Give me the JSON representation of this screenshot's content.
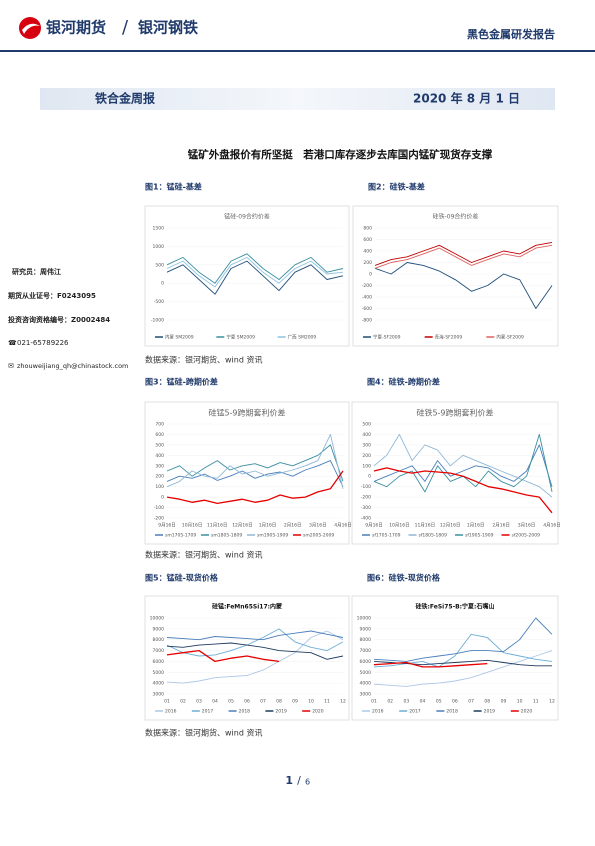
{
  "header": {
    "logo1": "银河期货",
    "logo2": "银河钢铁",
    "report": "黑色金属研发报告"
  },
  "band": {
    "name": "铁合金周报",
    "date": "2020 年 8 月 1 日"
  },
  "author": {
    "researcher": "研究员：周伟江",
    "license": "期货从业证号：F0243095",
    "qualification": "投资咨询资格编号：Z0002484",
    "phone": "021-65789226",
    "email": "zhouweijiang_qh@chinastock.com"
  },
  "title": "锰矿外盘报价有所坚挺　若港口库存逐步去库国内锰矿现货存支撑",
  "sources": [
    "数据来源：银河期货、wind 资讯",
    "数据来源：银河期货、wind 资讯",
    "数据来源：银河期货、wind 资讯"
  ],
  "page": {
    "current": "1",
    "total": "6"
  },
  "chart_data": [
    {
      "type": "line",
      "caption": "图1：锰硅-基差",
      "title": "锰硅-09合约价差",
      "categories": [
        null,
        null,
        null,
        null,
        null,
        null,
        null,
        null,
        null,
        null,
        null,
        null
      ],
      "ylim": [
        -1000,
        1500
      ],
      "yticks": [
        -1000,
        -500,
        0,
        500,
        1000,
        1500
      ],
      "series": [
        {
          "name": "内蒙 SM2009",
          "color": "#1f4e79",
          "values": [
            300,
            500,
            100,
            -300,
            400,
            600,
            200,
            -200,
            300,
            500,
            100,
            200
          ]
        },
        {
          "name": "宁夏 SM2009",
          "color": "#3a8fa0",
          "values": [
            500,
            700,
            300,
            0,
            600,
            800,
            400,
            100,
            500,
            700,
            300,
            400
          ]
        },
        {
          "name": "广西 SM2009",
          "color": "#8fc3e0",
          "values": [
            400,
            600,
            200,
            -100,
            500,
            700,
            300,
            0,
            400,
            600,
            250,
            300
          ]
        }
      ]
    },
    {
      "type": "line",
      "caption": "图2：硅铁-基差",
      "title": "硅铁-09合约价差",
      "categories": [
        null,
        null,
        null,
        null,
        null,
        null,
        null,
        null,
        null,
        null,
        null,
        null
      ],
      "ylim": [
        -800,
        800
      ],
      "yticks": [
        -800,
        -600,
        -400,
        -200,
        0,
        200,
        400,
        600,
        800
      ],
      "series": [
        {
          "name": "宁夏-SF2009",
          "color": "#1f4e79",
          "values": [
            100,
            0,
            200,
            150,
            50,
            -100,
            -300,
            -200,
            0,
            -100,
            -600,
            -200
          ]
        },
        {
          "name": "青海-SF2009",
          "color": "#c00000",
          "values": [
            150,
            250,
            300,
            400,
            500,
            350,
            200,
            300,
            400,
            350,
            500,
            550
          ]
        },
        {
          "name": "内蒙-SF2009",
          "color": "#e06060",
          "values": [
            100,
            200,
            250,
            350,
            450,
            300,
            150,
            250,
            350,
            300,
            450,
            500
          ]
        }
      ]
    },
    {
      "type": "line",
      "caption": "图3：锰硅-跨期价差",
      "title": "硅锰5-9跨期套利价差",
      "categories": [
        "9月16日",
        null,
        "10月16日",
        null,
        "11月16日",
        null,
        "12月16日",
        null,
        "1月16日",
        null,
        "2月16日",
        null,
        "3月16日",
        null,
        "4月16日"
      ],
      "ylim": [
        -200,
        700
      ],
      "yticks": [
        -200,
        -100,
        0,
        100,
        200,
        300,
        400,
        500,
        600,
        700
      ],
      "series": [
        {
          "name": "sm1705-1709",
          "color": "#4a7ebb",
          "values": [
            150,
            200,
            180,
            220,
            160,
            200,
            250,
            180,
            220,
            240,
            200,
            260,
            300,
            350,
            100
          ]
        },
        {
          "name": "sm1805-1809",
          "color": "#3a8fa0",
          "values": [
            250,
            300,
            200,
            280,
            350,
            260,
            300,
            320,
            280,
            330,
            300,
            350,
            400,
            500,
            150
          ]
        },
        {
          "name": "sm1905-1909",
          "color": "#8fb8d8",
          "values": [
            100,
            150,
            250,
            200,
            180,
            300,
            220,
            250,
            200,
            230,
            260,
            300,
            350,
            600,
            80
          ]
        },
        {
          "name": "sm2005-2009",
          "color": "#e60000",
          "values": [
            0,
            -20,
            -50,
            -30,
            -60,
            -40,
            -20,
            -50,
            -30,
            20,
            -10,
            0,
            50,
            80,
            250
          ]
        }
      ]
    },
    {
      "type": "line",
      "caption": "图4：硅铁-跨期价差",
      "title": "硅铁5-9跨期套利价差",
      "categories": [
        "9月16日",
        null,
        "10月16日",
        null,
        "11月16日",
        null,
        "12月16日",
        null,
        "1月16日",
        null,
        "2月16日",
        null,
        "3月16日",
        null,
        "4月16日"
      ],
      "ylim": [
        -400,
        500
      ],
      "yticks": [
        -400,
        -300,
        -200,
        -100,
        0,
        100,
        200,
        300,
        400,
        500
      ],
      "series": [
        {
          "name": "sf1705-1709",
          "color": "#4a7ebb",
          "values": [
            -50,
            0,
            50,
            100,
            -50,
            150,
            0,
            50,
            100,
            80,
            0,
            -50,
            50,
            300,
            -100
          ]
        },
        {
          "name": "sf1805-1809",
          "color": "#8fb8d8",
          "values": [
            100,
            200,
            400,
            150,
            300,
            250,
            100,
            200,
            150,
            100,
            50,
            0,
            -50,
            -100,
            -200
          ]
        },
        {
          "name": "sf1905-1909",
          "color": "#3a8fa0",
          "values": [
            -50,
            -100,
            0,
            50,
            -150,
            100,
            -50,
            0,
            -100,
            50,
            -50,
            -100,
            0,
            400,
            -150
          ]
        },
        {
          "name": "sf2005-2009",
          "color": "#e60000",
          "values": [
            50,
            80,
            50,
            30,
            50,
            40,
            30,
            0,
            -50,
            -100,
            -120,
            -150,
            -180,
            -200,
            -350
          ]
        }
      ]
    },
    {
      "type": "line",
      "caption": "图5：锰硅-现货价格",
      "title": "硅锰:FeMn65Si17:内蒙",
      "categories": [
        "01",
        "02",
        "03",
        "04",
        "05",
        "06",
        "07",
        "08",
        "09",
        "10",
        "11",
        "12"
      ],
      "ylim": [
        3000,
        10000
      ],
      "yticks": [
        3000,
        4000,
        5000,
        6000,
        7000,
        8000,
        9000,
        10000
      ],
      "series": [
        {
          "name": "2016",
          "color": "#aec7e8",
          "values": [
            4100,
            4000,
            4200,
            4500,
            4600,
            4700,
            5200,
            6000,
            6800,
            8200,
            8800,
            8000
          ]
        },
        {
          "name": "2017",
          "color": "#6baed6",
          "values": [
            7500,
            6800,
            6500,
            6600,
            7000,
            7500,
            8200,
            9000,
            7800,
            7300,
            7000,
            7800
          ]
        },
        {
          "name": "2018",
          "color": "#4a7ebb",
          "values": [
            8200,
            8100,
            8000,
            8300,
            8200,
            8100,
            8000,
            8400,
            8600,
            8800,
            8500,
            8200
          ]
        },
        {
          "name": "2019",
          "color": "#1f3a5f",
          "values": [
            7400,
            7300,
            7500,
            7600,
            7700,
            7500,
            7300,
            7000,
            6900,
            6800,
            6200,
            6500
          ]
        },
        {
          "name": "2020",
          "color": "#e60000",
          "values": [
            6600,
            6800,
            7000,
            6000,
            6300,
            6500,
            6200,
            6000,
            null,
            null,
            null,
            null
          ]
        }
      ]
    },
    {
      "type": "line",
      "caption": "图6：硅铁-现货价格",
      "title": "硅铁:FeSi75-B:宁夏:石嘴山",
      "categories": [
        "01",
        "02",
        "03",
        "04",
        "05",
        "06",
        "07",
        "08",
        "09",
        "10",
        "11",
        "12"
      ],
      "ylim": [
        3000,
        10000
      ],
      "yticks": [
        3000,
        4000,
        5000,
        6000,
        7000,
        8000,
        9000,
        10000
      ],
      "series": [
        {
          "name": "2016",
          "color": "#aec7e8",
          "values": [
            3900,
            3800,
            3700,
            3900,
            4000,
            4200,
            4500,
            5000,
            5500,
            6000,
            6500,
            7000
          ]
        },
        {
          "name": "2017",
          "color": "#6baed6",
          "values": [
            5500,
            5600,
            5800,
            6000,
            5500,
            6500,
            8500,
            8200,
            6800,
            6500,
            6200,
            6000
          ]
        },
        {
          "name": "2018",
          "color": "#4a7ebb",
          "values": [
            6200,
            6100,
            6000,
            6300,
            6500,
            6700,
            7000,
            7000,
            6900,
            8000,
            10000,
            8500
          ]
        },
        {
          "name": "2019",
          "color": "#1f3a5f",
          "values": [
            6000,
            5900,
            5800,
            5700,
            5800,
            5900,
            6000,
            6100,
            5900,
            5700,
            5600,
            5600
          ]
        },
        {
          "name": "2020",
          "color": "#e60000",
          "values": [
            5700,
            5800,
            5900,
            5500,
            5500,
            5600,
            5700,
            5800,
            null,
            null,
            null,
            null
          ]
        }
      ]
    }
  ]
}
